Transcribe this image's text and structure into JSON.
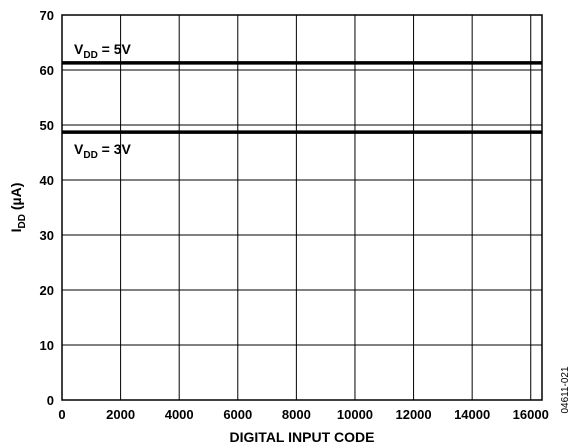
{
  "chart_data": {
    "type": "line",
    "xlabel": "DIGITAL INPUT CODE",
    "ylabel": {
      "main": "I",
      "sub": "DD",
      "rest": " (µA)"
    },
    "xlim": [
      0,
      16384
    ],
    "ylim": [
      0,
      70
    ],
    "x_ticks": [
      0,
      2000,
      4000,
      6000,
      8000,
      10000,
      12000,
      14000,
      16000
    ],
    "y_ticks": [
      0,
      10,
      20,
      30,
      40,
      50,
      60,
      70
    ],
    "grid": true,
    "series": [
      {
        "label_main": "V",
        "label_sub": "DD",
        "label_rest": " = 5V",
        "x": [
          0,
          16384
        ],
        "y": [
          61.3,
          61.3
        ],
        "color": "#000000"
      },
      {
        "label_main": "V",
        "label_sub": "DD",
        "label_rest": " = 3V",
        "x": [
          0,
          16384
        ],
        "y": [
          48.7,
          48.7
        ],
        "color": "#000000"
      }
    ],
    "figure_id": "04611-021"
  }
}
